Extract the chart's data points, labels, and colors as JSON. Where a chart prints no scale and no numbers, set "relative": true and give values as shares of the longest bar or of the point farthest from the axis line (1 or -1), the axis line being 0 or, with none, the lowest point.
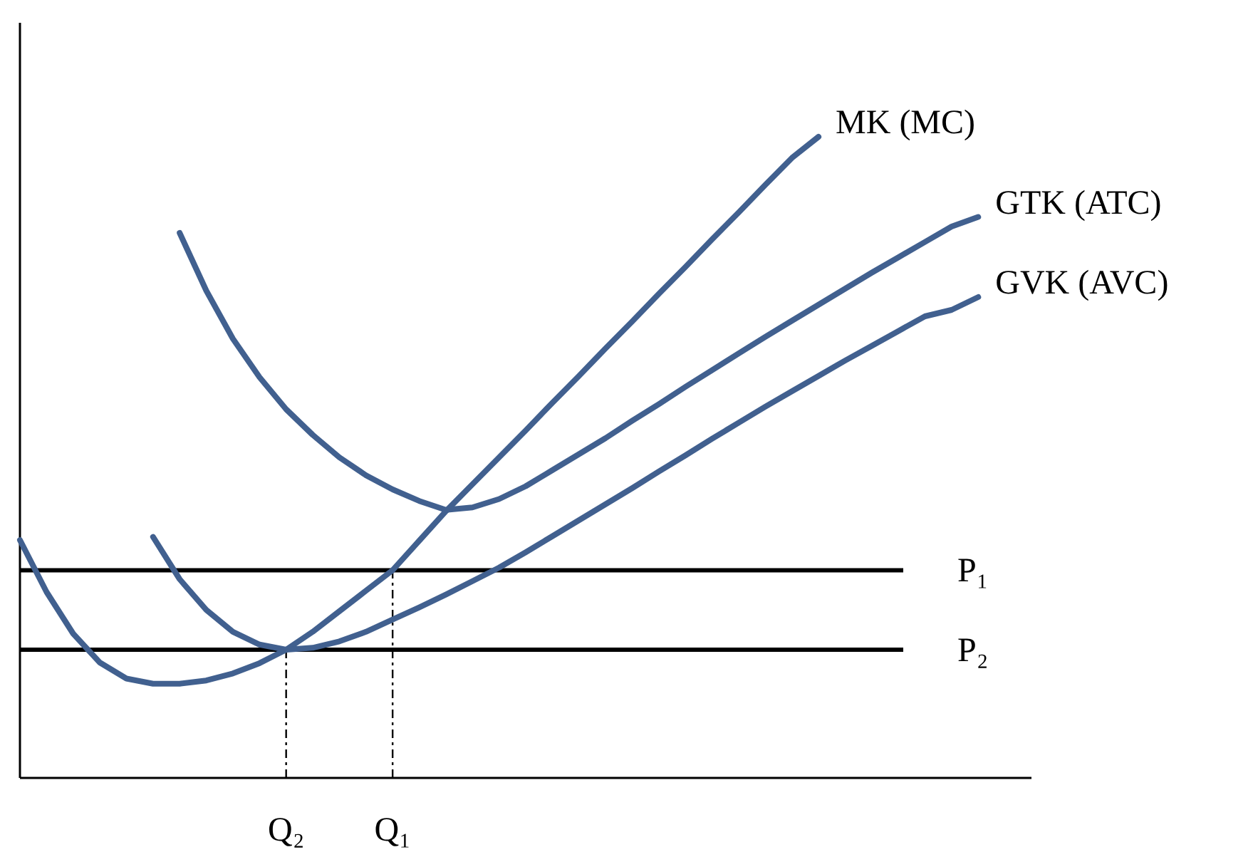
{
  "chart_data": {
    "type": "line",
    "relative": true,
    "categories": [
      null,
      null,
      null,
      null,
      null,
      null,
      null,
      null,
      null,
      null,
      "Q₂",
      null,
      null,
      null,
      "Q₁",
      null,
      null,
      null,
      null,
      null,
      null,
      null,
      null,
      null,
      null,
      null,
      null,
      null,
      null,
      null,
      null,
      null,
      null,
      null,
      null,
      null,
      null,
      null,
      null
    ],
    "series": [
      {
        "name": "MK (MC)",
        "color": "#41608f",
        "values": [
          0.371,
          0.29,
          0.225,
          0.18,
          0.155,
          0.147,
          0.147,
          0.152,
          0.163,
          0.179,
          0.2,
          0.228,
          0.26,
          0.292,
          0.324,
          0.37,
          0.416,
          0.458,
          0.5,
          0.542,
          0.585,
          0.627,
          0.67,
          0.712,
          0.755,
          0.797,
          0.84,
          0.882,
          0.925,
          0.967,
          1,
          null,
          null,
          null,
          null,
          null,
          null,
          null,
          null
        ]
      },
      {
        "name": "GTK (ATC)",
        "color": "#41608f",
        "values": [
          null,
          null,
          null,
          null,
          null,
          null,
          0.85,
          0.76,
          0.685,
          0.625,
          0.575,
          0.535,
          0.5,
          0.472,
          0.45,
          0.432,
          0.418,
          0.422,
          0.435,
          0.455,
          0.48,
          0.505,
          0.53,
          0.557,
          0.583,
          0.61,
          0.636,
          0.662,
          0.688,
          0.713,
          0.738,
          0.763,
          0.788,
          0.812,
          0.836,
          0.86,
          0.875,
          null,
          null
        ]
      },
      {
        "name": "GVK (AVC)",
        "color": "#41608f",
        "values": [
          null,
          null,
          null,
          null,
          null,
          0.376,
          0.31,
          0.262,
          0.228,
          0.208,
          0.2,
          0.203,
          0.213,
          0.228,
          0.247,
          0.266,
          0.286,
          0.307,
          0.328,
          0.352,
          0.377,
          0.402,
          0.427,
          0.452,
          0.478,
          0.503,
          0.529,
          0.554,
          0.579,
          0.603,
          0.627,
          0.651,
          0.674,
          0.697,
          0.72,
          0.73,
          0.75,
          null,
          null
        ]
      }
    ],
    "ref_lines": [
      {
        "axis": "y",
        "value": 0.324,
        "label": "P₁",
        "color": "#000000"
      },
      {
        "axis": "y",
        "value": 0.2,
        "label": "P₂",
        "color": "#000000"
      },
      {
        "axis": "x",
        "value": "Q₂",
        "color": "#000000",
        "line_style": "dashed"
      },
      {
        "axis": "x",
        "value": "Q₁",
        "color": "#000000",
        "line_style": "dashed"
      }
    ]
  }
}
